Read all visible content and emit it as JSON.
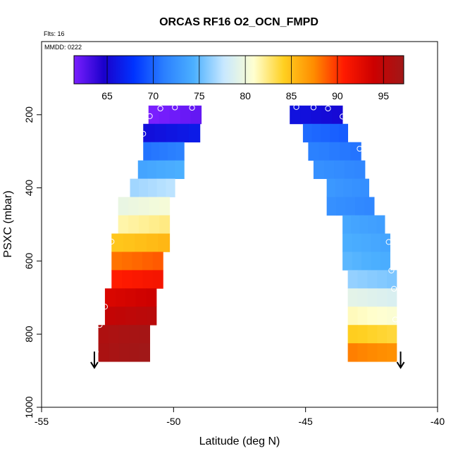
{
  "chart_data": {
    "type": "heatmap",
    "title": "ORCAS RF16 O2_OCN_FMPD",
    "subtitle_flts": "Flts: 16",
    "subtitle_mmdd": "MMDD: 0222",
    "xlabel": "Latitude (deg N)",
    "ylabel": "PSXC (mbar)",
    "xlim": [
      -55,
      -40
    ],
    "ylim": [
      1000,
      0
    ],
    "x_ticks": [
      -55,
      -50,
      -45,
      -40
    ],
    "y_ticks": [
      200,
      400,
      600,
      800,
      1000
    ],
    "colorbar": {
      "range": [
        61.4,
        97.2
      ],
      "ticks": [
        65,
        70,
        75,
        80,
        85,
        90,
        95
      ],
      "stops": [
        "#7a1fff",
        "#1a00cc",
        "#0033ff",
        "#2a7fff",
        "#4cb0ff",
        "#c8e8ff",
        "#ffffd0",
        "#ffd020",
        "#ff8c00",
        "#ff1a00",
        "#cc0000",
        "#a01818"
      ]
    },
    "left_profile": [
      {
        "pres_top": 175,
        "pres_bot": 225,
        "lat_min": -50.95,
        "lat_max": -48.95,
        "value": 61.8
      },
      {
        "pres_top": 225,
        "pres_bot": 275,
        "lat_min": -51.15,
        "lat_max": -49.0,
        "value": 66.0
      },
      {
        "pres_top": 275,
        "pres_bot": 325,
        "lat_min": -51.15,
        "lat_max": -49.6,
        "value": 71.0
      },
      {
        "pres_top": 325,
        "pres_bot": 375,
        "lat_min": -51.35,
        "lat_max": -49.6,
        "value": 74.0
      },
      {
        "pres_top": 375,
        "pres_bot": 425,
        "lat_min": -51.65,
        "lat_max": -49.95,
        "value": 77.0
      },
      {
        "pres_top": 425,
        "pres_bot": 475,
        "lat_min": -52.1,
        "lat_max": -50.15,
        "value": 80.0
      },
      {
        "pres_top": 475,
        "pres_bot": 525,
        "lat_min": -52.1,
        "lat_max": -50.15,
        "value": 82.0
      },
      {
        "pres_top": 525,
        "pres_bot": 575,
        "lat_min": -52.35,
        "lat_max": -50.15,
        "value": 85.0
      },
      {
        "pres_top": 575,
        "pres_bot": 625,
        "lat_min": -52.35,
        "lat_max": -50.4,
        "value": 88.5
      },
      {
        "pres_top": 625,
        "pres_bot": 675,
        "lat_min": -52.35,
        "lat_max": -50.4,
        "value": 91.0
      },
      {
        "pres_top": 675,
        "pres_bot": 725,
        "lat_min": -52.6,
        "lat_max": -50.65,
        "value": 93.5
      },
      {
        "pres_top": 725,
        "pres_bot": 775,
        "lat_min": -52.6,
        "lat_max": -50.65,
        "value": 95.0
      },
      {
        "pres_top": 775,
        "pres_bot": 825,
        "lat_min": -52.85,
        "lat_max": -50.9,
        "value": 96.5
      },
      {
        "pres_top": 825,
        "pres_bot": 875,
        "lat_min": -52.85,
        "lat_max": -50.9,
        "value": 96.8
      }
    ],
    "right_profile": [
      {
        "pres_top": 175,
        "pres_bot": 225,
        "lat_min": -45.6,
        "lat_max": -43.6,
        "value": 65.5
      },
      {
        "pres_top": 225,
        "pres_bot": 275,
        "lat_min": -45.1,
        "lat_max": -43.4,
        "value": 70.0
      },
      {
        "pres_top": 275,
        "pres_bot": 325,
        "lat_min": -44.9,
        "lat_max": -42.9,
        "value": 71.0
      },
      {
        "pres_top": 325,
        "pres_bot": 375,
        "lat_min": -44.7,
        "lat_max": -42.75,
        "value": 72.0
      },
      {
        "pres_top": 375,
        "pres_bot": 425,
        "lat_min": -44.2,
        "lat_max": -42.6,
        "value": 72.5
      },
      {
        "pres_top": 425,
        "pres_bot": 475,
        "lat_min": -44.2,
        "lat_max": -42.4,
        "value": 72.0
      },
      {
        "pres_top": 475,
        "pres_bot": 525,
        "lat_min": -43.6,
        "lat_max": -42.0,
        "value": 73.5
      },
      {
        "pres_top": 525,
        "pres_bot": 575,
        "lat_min": -43.6,
        "lat_max": -41.8,
        "value": 74.0
      },
      {
        "pres_top": 575,
        "pres_bot": 625,
        "lat_min": -43.6,
        "lat_max": -41.8,
        "value": 74.5
      },
      {
        "pres_top": 625,
        "pres_bot": 675,
        "lat_min": -43.4,
        "lat_max": -41.55,
        "value": 76.0
      },
      {
        "pres_top": 675,
        "pres_bot": 725,
        "lat_min": -43.4,
        "lat_max": -41.55,
        "value": 79.0
      },
      {
        "pres_top": 725,
        "pres_bot": 775,
        "lat_min": -43.4,
        "lat_max": -41.55,
        "value": 81.0
      },
      {
        "pres_top": 775,
        "pres_bot": 825,
        "lat_min": -43.4,
        "lat_max": -41.55,
        "value": 84.0
      },
      {
        "pres_top": 825,
        "pres_bot": 875,
        "lat_min": -43.4,
        "lat_max": -41.55,
        "value": 87.5
      }
    ],
    "left_markers": [
      {
        "lat": -50.5,
        "pres": 183
      },
      {
        "lat": -49.95,
        "pres": 180
      },
      {
        "lat": -49.3,
        "pres": 181
      },
      {
        "lat": -50.9,
        "pres": 204
      },
      {
        "lat": -51.15,
        "pres": 252
      },
      {
        "lat": -52.35,
        "pres": 547
      },
      {
        "lat": -52.6,
        "pres": 725
      },
      {
        "lat": -52.8,
        "pres": 775
      },
      {
        "lat": -52.95,
        "pres": 848
      }
    ],
    "right_markers": [
      {
        "lat": -45.35,
        "pres": 179
      },
      {
        "lat": -44.7,
        "pres": 180
      },
      {
        "lat": -44.15,
        "pres": 183
      },
      {
        "lat": -43.6,
        "pres": 205
      },
      {
        "lat": -42.95,
        "pres": 293
      },
      {
        "lat": -41.85,
        "pres": 548
      },
      {
        "lat": -41.75,
        "pres": 626
      },
      {
        "lat": -41.65,
        "pres": 676
      },
      {
        "lat": -41.6,
        "pres": 760
      }
    ],
    "arrows": [
      {
        "lat": -53.0,
        "pres": 890
      },
      {
        "lat": -41.4,
        "pres": 890
      }
    ]
  }
}
